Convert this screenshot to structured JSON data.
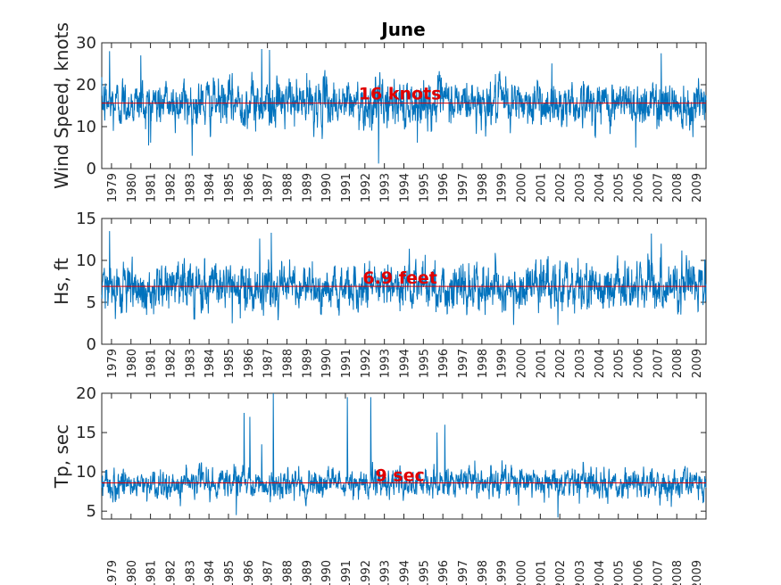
{
  "chart_data": [
    {
      "type": "line",
      "title": "June",
      "ylabel": "Wind Speed, knots",
      "xlabel": "",
      "ylim": [
        0,
        30
      ],
      "yticks": [
        0,
        10,
        20,
        30
      ],
      "xlim": [
        1978.5,
        2009.5
      ],
      "xticks": [
        1979,
        1980,
        1981,
        1982,
        1983,
        1984,
        1985,
        1986,
        1987,
        1988,
        1989,
        1990,
        1991,
        1992,
        1993,
        1994,
        1995,
        1996,
        1997,
        1998,
        1999,
        2000,
        2001,
        2002,
        2003,
        2004,
        2005,
        2006,
        2007,
        2008,
        2009
      ],
      "series": [
        {
          "name": "Wind Speed",
          "color": "#0072bd",
          "mean": 15.6,
          "min": 1.2,
          "max": 28.5,
          "peaks": [
            [
              1978.9,
              28
            ],
            [
              1980.5,
              27
            ],
            [
              1986.7,
              28.5
            ],
            [
              1987.1,
              28.3
            ],
            [
              2007.2,
              27.5
            ]
          ],
          "troughs": [
            [
              1979.1,
              9
            ],
            [
              1980.9,
              5.5
            ],
            [
              1992.7,
              1.2
            ],
            [
              2005.9,
              5
            ]
          ]
        }
      ],
      "mean_line": {
        "value": 15.6,
        "color": "#e00000"
      },
      "annotation": {
        "text": "16 knots",
        "x": 1993.8,
        "y": 18
      }
    },
    {
      "type": "line",
      "title": "",
      "ylabel": "Hs, ft",
      "xlabel": "",
      "ylim": [
        0,
        15
      ],
      "yticks": [
        0,
        5,
        10,
        15
      ],
      "xlim": [
        1978.5,
        2009.5
      ],
      "xticks": [
        1979,
        1980,
        1981,
        1982,
        1983,
        1984,
        1985,
        1986,
        1987,
        1988,
        1989,
        1990,
        1991,
        1992,
        1993,
        1994,
        1995,
        1996,
        1997,
        1998,
        1999,
        2000,
        2001,
        2002,
        2003,
        2004,
        2005,
        2006,
        2007,
        2008,
        2009
      ],
      "series": [
        {
          "name": "Hs",
          "color": "#0072bd",
          "mean": 6.9,
          "min": 2.3,
          "max": 13.5,
          "peaks": [
            [
              1978.9,
              13.5
            ],
            [
              1986.6,
              12.6
            ],
            [
              1987.2,
              13.3
            ],
            [
              2006.7,
              13.2
            ],
            [
              2007.2,
              12
            ]
          ],
          "troughs": [
            [
              1985.2,
              2.5
            ],
            [
              2001.9,
              2.3
            ],
            [
              1980.8,
              3.5
            ]
          ]
        }
      ],
      "mean_line": {
        "value": 6.9,
        "color": "#e00000"
      },
      "annotation": {
        "text": "6.9 feet",
        "x": 1993.8,
        "y": 8
      }
    },
    {
      "type": "line",
      "title": "",
      "ylabel": "Tp, sec",
      "xlabel": "",
      "ylim": [
        4,
        20
      ],
      "yticks": [
        5,
        10,
        15,
        20
      ],
      "xlim": [
        1978.5,
        2009.5
      ],
      "xticks": [
        1979,
        1980,
        1981,
        1982,
        1983,
        1984,
        1985,
        1986,
        1987,
        1988,
        1989,
        1990,
        1991,
        1992,
        1993,
        1994,
        1995,
        1996,
        1997,
        1998,
        1999,
        2000,
        2001,
        2002,
        2003,
        2004,
        2005,
        2006,
        2007,
        2008,
        2009
      ],
      "series": [
        {
          "name": "Tp",
          "color": "#0072bd",
          "mean": 8.6,
          "min": 4.2,
          "max": 20,
          "spikes": [
            [
              1985.8,
              17.5
            ],
            [
              1986.1,
              17
            ],
            [
              1986.7,
              13.5
            ],
            [
              1987.3,
              20
            ],
            [
              1991.1,
              19.5
            ],
            [
              1992.3,
              19.5
            ],
            [
              1995.7,
              15
            ],
            [
              1996.1,
              16
            ]
          ],
          "troughs": [
            [
              1985.4,
              4.5
            ],
            [
              2001.9,
              4.2
            ]
          ]
        }
      ],
      "mean_line": {
        "value": 8.6,
        "color": "#e00000"
      },
      "annotation": {
        "text": "9 sec",
        "x": 1993.8,
        "y": 9.6
      }
    }
  ]
}
